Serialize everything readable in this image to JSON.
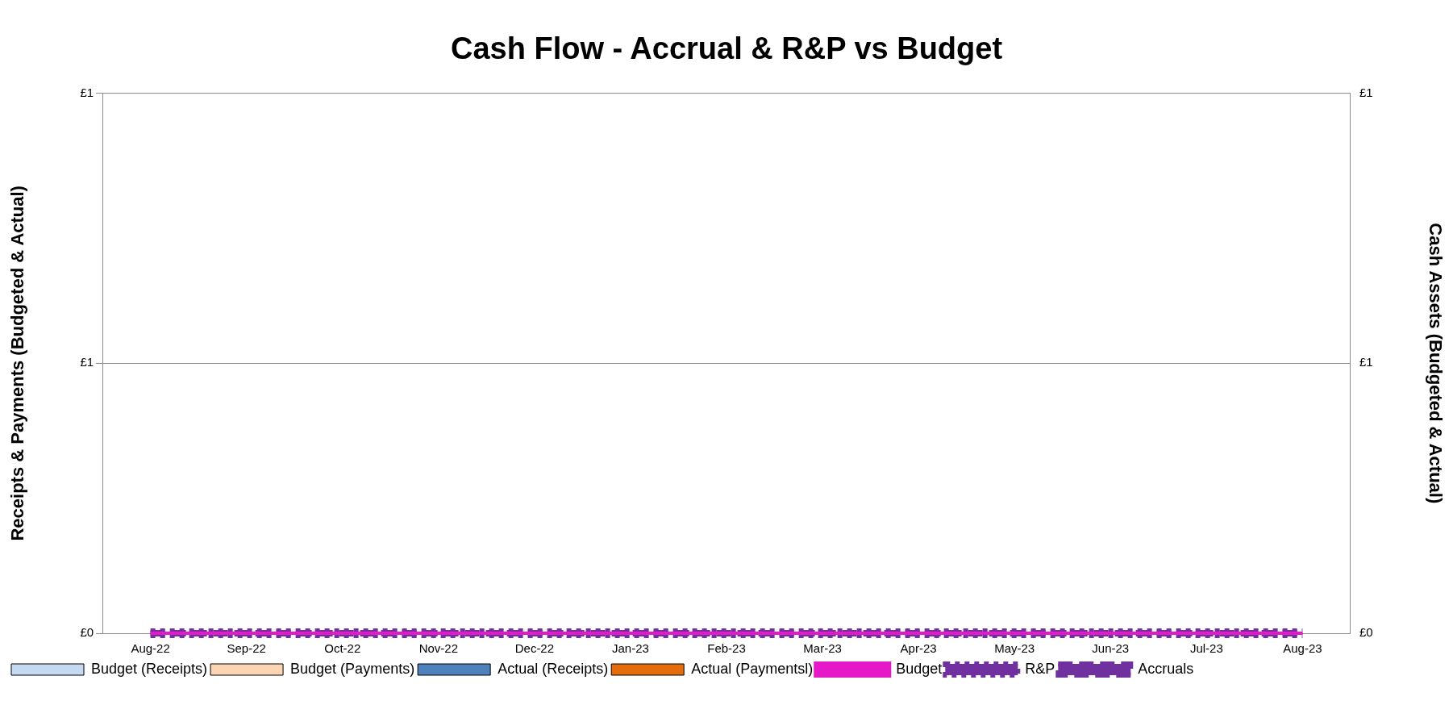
{
  "chart_data": {
    "type": "bar",
    "title": "Cash Flow - Accrual & R&P vs Budget",
    "ylabel": "Receipts & Payments (Budgeted & Actual)",
    "y2label": "Cash Assets (Budgeted & Actual)",
    "categories": [
      "Aug-22",
      "Sep-22",
      "Oct-22",
      "Nov-22",
      "Dec-22",
      "Jan-23",
      "Feb-23",
      "Mar-23",
      "Apr-23",
      "May-23",
      "Jun-23",
      "Jul-23",
      "Aug-23"
    ],
    "series": [
      {
        "name": "Budget (Receipts)",
        "color": "#c5d9f1",
        "values": [
          0,
          0,
          0,
          0,
          0,
          0,
          0,
          0,
          0,
          0,
          0,
          0,
          0
        ]
      },
      {
        "name": "Budget (Payments)",
        "color": "#fcd5b4",
        "values": [
          0,
          0,
          0,
          0,
          0,
          0,
          0,
          0,
          0,
          0,
          0,
          0,
          0
        ]
      },
      {
        "name": "Actual (Receipts)",
        "color": "#4f81bd",
        "values": [
          0,
          0,
          0,
          0,
          0,
          0,
          0,
          0,
          0,
          0,
          0,
          0,
          0
        ]
      },
      {
        "name": "Actual (Paymentsl)",
        "color": "#e46c0a",
        "values": [
          0,
          0,
          0,
          0,
          0,
          0,
          0,
          0,
          0,
          0,
          0,
          0,
          0
        ]
      },
      {
        "name": "Budget",
        "type": "line",
        "line_style": "solid",
        "color": "#e619c8",
        "values": [
          0,
          0,
          0,
          0,
          0,
          0,
          0,
          0,
          0,
          0,
          0,
          0,
          0
        ]
      },
      {
        "name": "R&P",
        "type": "line",
        "line_style": "dotted",
        "color": "#7030a0",
        "values": [
          0,
          0,
          0,
          0,
          0,
          0,
          0,
          0,
          0,
          0,
          0,
          0,
          0
        ]
      },
      {
        "name": "Accruals",
        "type": "line",
        "line_style": "dashed",
        "color": "#7030a0",
        "values": [
          0,
          0,
          0,
          0,
          0,
          0,
          0,
          0,
          0,
          0,
          0,
          0,
          0
        ]
      }
    ],
    "ylim": [
      0,
      1
    ],
    "yticks": [
      {
        "value": 0,
        "label": "£0"
      },
      {
        "value": 0.5,
        "label": "£1"
      },
      {
        "value": 1,
        "label": "£1"
      }
    ],
    "y2lim": [
      0,
      1
    ],
    "y2ticks": [
      {
        "value": 0,
        "label": "£0"
      },
      {
        "value": 0.5,
        "label": "£1"
      },
      {
        "value": 1,
        "label": "£1"
      }
    ],
    "grid": "y",
    "legend": "bottom",
    "marker": "none"
  }
}
